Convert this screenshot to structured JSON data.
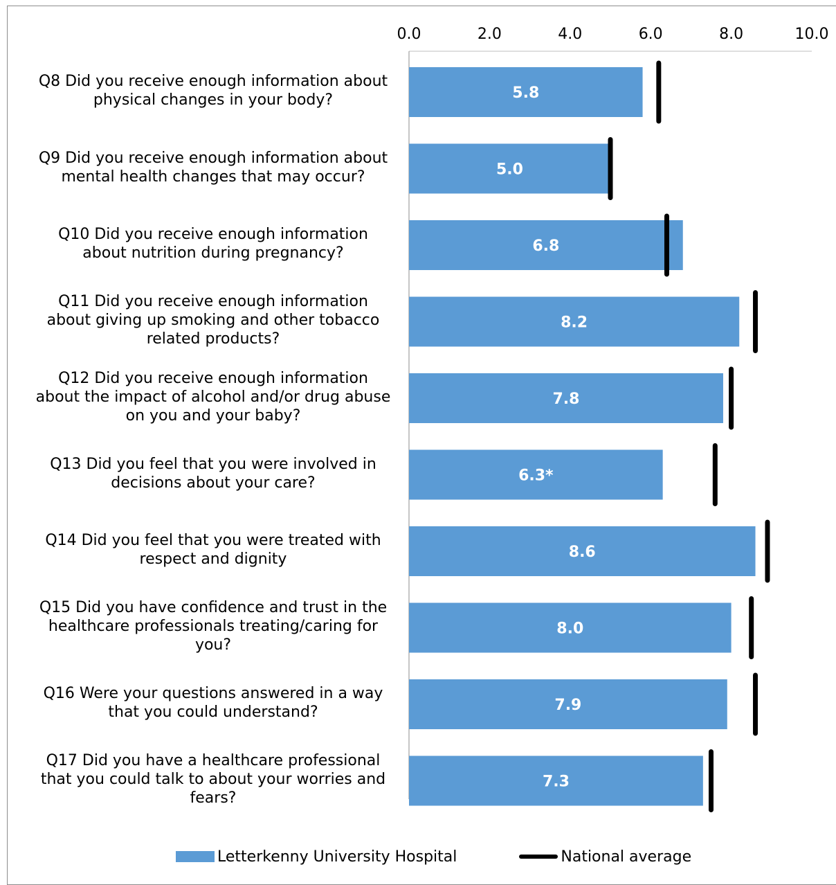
{
  "chart_data": {
    "type": "bar",
    "orientation": "horizontal",
    "title": "",
    "xlim": [
      0,
      10
    ],
    "xticks": [
      "0.0",
      "2.0",
      "4.0",
      "6.0",
      "8.0",
      "10.0"
    ],
    "grid": false,
    "legend_position": "bottom",
    "categories": [
      "Q8 Did you receive enough information about physical changes in your body?",
      "Q9 Did you receive enough information about mental health changes that may occur?",
      "Q10 Did you receive enough information about nutrition during pregnancy?",
      "Q11 Did you receive enough information about giving up smoking and other tobacco related products?",
      "Q12 Did you receive enough information about the impact of alcohol and/or drug abuse on you and your baby?",
      "Q13 Did you feel that you were involved in decisions about your care?",
      "Q14 Did you feel that you were treated with respect and dignity",
      "Q15 Did you have confidence and trust in the healthcare professionals treating/caring for you?",
      "Q16 Were your questions answered in a way that you could understand?",
      "Q17 Did you have a healthcare professional that you could talk to about your worries and fears?"
    ],
    "category_lines": [
      [
        "Q8 Did you receive enough information about",
        "physical changes in your body?"
      ],
      [
        "Q9 Did you receive enough information about",
        "mental health changes that may occur?"
      ],
      [
        "Q10 Did you receive enough information",
        "about nutrition during pregnancy?"
      ],
      [
        "Q11 Did you receive enough information",
        "about giving up smoking and other tobacco",
        "related products?"
      ],
      [
        "Q12 Did you receive enough information",
        "about the impact of alcohol and/or drug abuse",
        "on you and your baby?"
      ],
      [
        "Q13 Did you feel that you were involved in",
        "decisions about your care?"
      ],
      [
        "Q14 Did you feel that you were treated with",
        "respect and dignity"
      ],
      [
        "Q15 Did you have confidence and trust in the",
        "healthcare professionals treating/caring for",
        "you?"
      ],
      [
        "Q16 Were your questions answered in a way",
        "that you could understand?"
      ],
      [
        "Q17 Did you have a healthcare professional",
        "that you could talk to about your worries and",
        "fears?"
      ]
    ],
    "series": [
      {
        "name": "Letterkenny University Hospital",
        "type": "bar",
        "color": "#5b9bd5",
        "values": [
          5.8,
          5.0,
          6.8,
          8.2,
          7.8,
          6.3,
          8.6,
          8.0,
          7.9,
          7.3
        ],
        "data_labels": [
          "5.8",
          "5.0",
          "6.8",
          "8.2",
          "7.8",
          "6.3*",
          "8.6",
          "8.0",
          "7.9",
          "7.3"
        ]
      },
      {
        "name": "National average",
        "type": "marker-line",
        "color": "#000000",
        "values": [
          6.2,
          5.0,
          6.4,
          8.6,
          8.0,
          7.6,
          8.9,
          8.5,
          8.6,
          7.5
        ]
      }
    ]
  }
}
